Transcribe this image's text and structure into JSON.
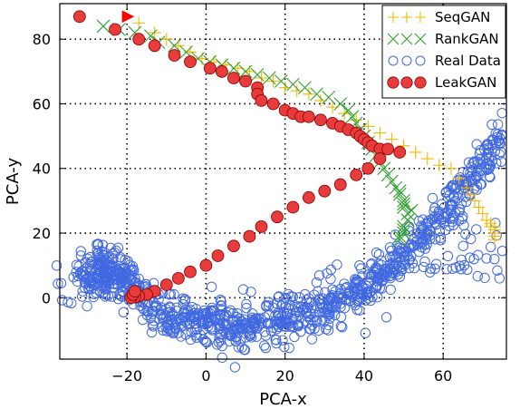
{
  "chart_data": {
    "type": "scatter",
    "xlabel": "PCA-x",
    "ylabel": "PCA-y",
    "xlim": [
      -37,
      76
    ],
    "ylim": [
      -19,
      91
    ],
    "xticks": [
      -20,
      0,
      20,
      40,
      60
    ],
    "yticks": [
      0,
      20,
      40,
      60,
      80
    ],
    "grid": true,
    "legend_position": "top-right",
    "series": [
      {
        "name": "SeqGAN",
        "marker": "plus",
        "color": "#f5b700",
        "x": [
          -17,
          -13,
          -10,
          -7,
          -4,
          -1,
          2,
          5,
          8,
          11,
          14,
          17,
          20,
          23,
          26,
          29,
          32,
          35,
          38,
          41,
          44,
          47,
          50,
          53,
          56,
          59,
          62,
          64,
          66,
          67,
          68,
          69,
          70,
          71,
          72,
          72,
          73,
          73,
          73,
          73,
          73
        ],
        "y": [
          85,
          82,
          80,
          78,
          76,
          74,
          73,
          72,
          71,
          70,
          68,
          67,
          65,
          64,
          63,
          61,
          59,
          57,
          55,
          53,
          51,
          49,
          47,
          45,
          43,
          41,
          40,
          37,
          34,
          32,
          30,
          28,
          26,
          24,
          23,
          22,
          22,
          21,
          20,
          19,
          18
        ]
      },
      {
        "name": "RankGAN",
        "marker": "x",
        "color": "#2ca02c",
        "x": [
          -26,
          -22,
          -18,
          -14,
          -12,
          -8,
          -5,
          -2,
          1,
          4,
          7,
          10,
          13,
          16,
          19,
          22,
          25,
          28,
          31,
          34,
          36,
          37,
          38,
          39,
          40,
          41,
          42,
          43,
          44,
          45,
          46,
          47,
          48,
          49,
          50,
          50,
          51,
          51,
          50,
          50,
          49,
          49,
          50,
          51,
          52,
          50,
          49
        ],
        "y": [
          84,
          83,
          82,
          81,
          79,
          78,
          76,
          74,
          73,
          72,
          71,
          70,
          69,
          68,
          67,
          66,
          65,
          63,
          62,
          60,
          58,
          56,
          54,
          52,
          50,
          48,
          46,
          44,
          42,
          40,
          38,
          36,
          34,
          32,
          30,
          28,
          26,
          24,
          22,
          20,
          19,
          18,
          21,
          24,
          27,
          29,
          33
        ]
      },
      {
        "name": "Real Data",
        "marker": "circle-open",
        "color": "#4169e1",
        "cluster": {
          "x": [
            -28,
            75
          ],
          "y": [
            -14,
            26
          ]
        }
      },
      {
        "name": "LeakGAN",
        "marker": "circle-filled",
        "color": "#e83b3b",
        "x": [
          -32,
          -23,
          -17,
          -13,
          -8,
          -4,
          1,
          4,
          7,
          10,
          13,
          13,
          14,
          17,
          20,
          22,
          24,
          26,
          29,
          32,
          34,
          36,
          38,
          39,
          40,
          41,
          42,
          44,
          46,
          49,
          44,
          41,
          38,
          34,
          30,
          26,
          22,
          18,
          14,
          11,
          7,
          3,
          0,
          -4,
          -7,
          -10,
          -13,
          -15,
          -17,
          -18,
          -19,
          -18.5,
          -18
        ],
        "y": [
          87,
          83,
          80,
          78,
          75,
          73,
          71,
          70,
          68,
          67,
          65,
          63,
          61,
          60,
          58,
          57,
          56,
          56,
          55,
          54,
          53,
          52,
          51,
          50,
          49,
          48,
          47,
          46,
          46,
          45,
          43,
          40,
          38,
          35,
          33,
          31,
          28,
          25,
          22,
          19,
          16,
          13,
          10,
          8,
          6,
          4,
          2,
          1,
          0.5,
          0.2,
          0,
          1,
          2
        ]
      }
    ],
    "annotations": [
      {
        "type": "triangle",
        "color": "#ff0000",
        "x": -20,
        "y": 87
      }
    ]
  }
}
